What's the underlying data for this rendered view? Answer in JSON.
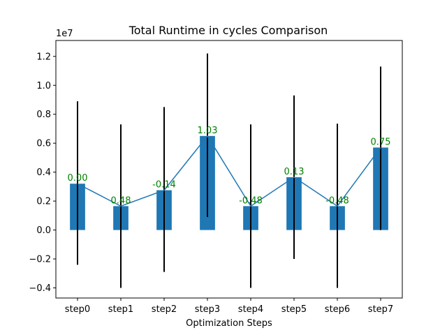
{
  "chart_data": {
    "type": "bar",
    "title": "Total Runtime in cycles Comparison",
    "xlabel": "Optimization Steps",
    "ylabel": "",
    "y_offset_text": "1e7",
    "ylim": [
      -0.47,
      1.31
    ],
    "yticks": [
      -0.4,
      -0.2,
      0.0,
      0.2,
      0.4,
      0.6,
      0.8,
      1.0,
      1.2
    ],
    "ytick_labels": [
      "−0.4",
      "−0.2",
      "0.0",
      "0.2",
      "0.4",
      "0.6",
      "0.8",
      "1.0",
      "1.2"
    ],
    "categories": [
      "step0",
      "step1",
      "step2",
      "step3",
      "step4",
      "step5",
      "step6",
      "step7"
    ],
    "values": [
      0.32,
      0.165,
      0.275,
      0.65,
      0.165,
      0.365,
      0.165,
      0.57
    ],
    "error_low": [
      -0.24,
      -0.4,
      -0.29,
      0.09,
      -0.4,
      -0.2,
      -0.4,
      0.0
    ],
    "error_high": [
      0.89,
      0.73,
      0.85,
      1.22,
      0.73,
      0.93,
      0.735,
      1.13
    ],
    "annotations": [
      "0.00",
      "0.48",
      "-0.14",
      "1.03",
      "-0.48",
      "0.13",
      "-0.48",
      "0.75"
    ],
    "bar_color": "#1f77b4",
    "line_color": "#1f77b4",
    "error_color": "#000000",
    "annotation_color": "#008000",
    "grid": false,
    "legend": "none"
  }
}
